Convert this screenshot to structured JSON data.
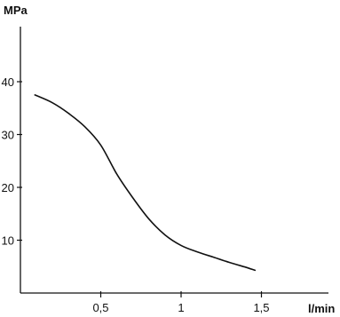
{
  "chart_data": {
    "type": "line",
    "title": "",
    "xlabel": "l/min",
    "ylabel": "MPa",
    "xlim": [
      0,
      1.8
    ],
    "ylim": [
      0,
      45
    ],
    "x_ticks": [
      {
        "value": 0.5,
        "label": "0,5"
      },
      {
        "value": 1.0,
        "label": "1"
      },
      {
        "value": 1.5,
        "label": "1,5"
      }
    ],
    "y_ticks": [
      {
        "value": 10,
        "label": "10"
      },
      {
        "value": 20,
        "label": "20"
      },
      {
        "value": 30,
        "label": "30"
      },
      {
        "value": 40,
        "label": "40"
      }
    ],
    "grid": false,
    "series": [
      {
        "color": "#111111",
        "points": [
          [
            0.09,
            37.5
          ],
          [
            0.2,
            36.0
          ],
          [
            0.3,
            34.0
          ],
          [
            0.4,
            31.5
          ],
          [
            0.5,
            28.0
          ],
          [
            0.6,
            22.5
          ],
          [
            0.7,
            18.0
          ],
          [
            0.8,
            14.0
          ],
          [
            0.9,
            11.0
          ],
          [
            1.0,
            9.0
          ],
          [
            1.1,
            7.8
          ],
          [
            1.2,
            6.8
          ],
          [
            1.3,
            5.8
          ],
          [
            1.4,
            4.9
          ],
          [
            1.46,
            4.3
          ]
        ]
      }
    ]
  }
}
